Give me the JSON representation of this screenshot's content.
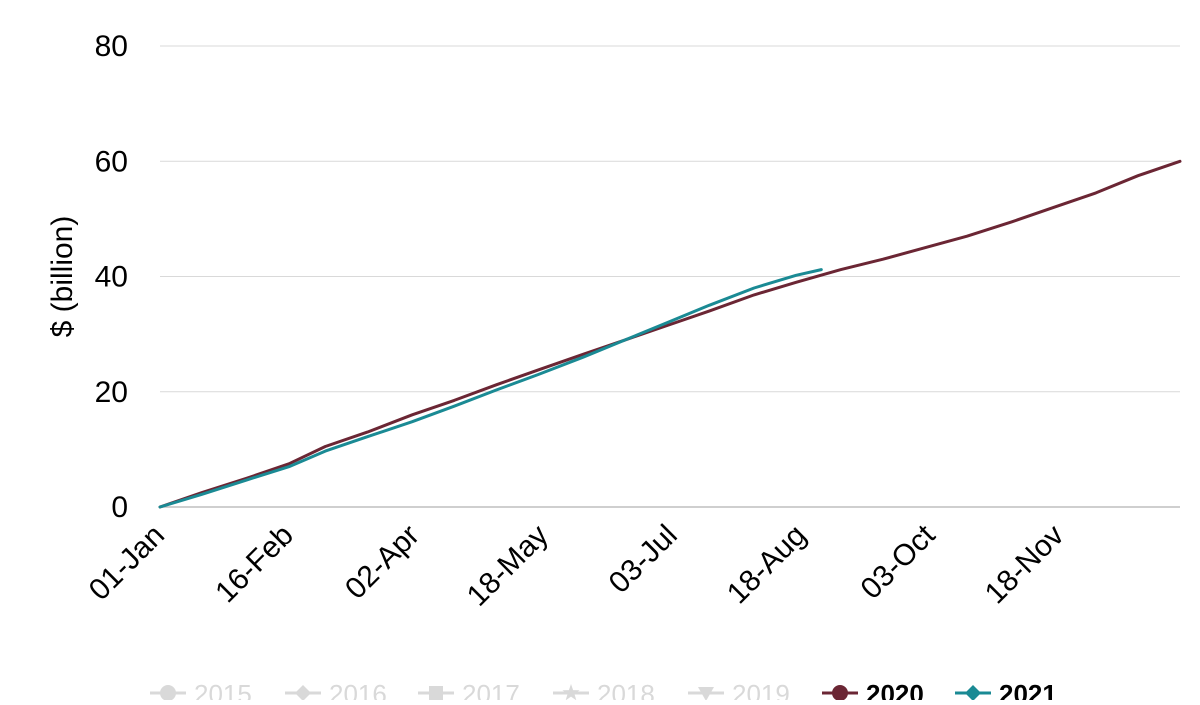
{
  "chart_data": {
    "type": "line",
    "title": "",
    "xlabel": "",
    "ylabel": "$ (billion)",
    "x_ticks": [
      "01-Jan",
      "16-Feb",
      "02-Apr",
      "18-May",
      "03-Jul",
      "18-Aug",
      "03-Oct",
      "18-Nov"
    ],
    "xlim": [
      "01-Jan",
      "31-Dec"
    ],
    "ylim": [
      0,
      80
    ],
    "y_ticks": [
      0,
      20,
      40,
      60,
      80
    ],
    "grid": "horizontal",
    "legend_position": "bottom",
    "series": [
      {
        "name": "2015",
        "color": "#d9d9d9",
        "marker": "circle",
        "bold": false,
        "x": [],
        "y": []
      },
      {
        "name": "2016",
        "color": "#d9d9d9",
        "marker": "diamond",
        "bold": false,
        "x": [],
        "y": []
      },
      {
        "name": "2017",
        "color": "#d9d9d9",
        "marker": "square",
        "bold": false,
        "x": [],
        "y": []
      },
      {
        "name": "2018",
        "color": "#d9d9d9",
        "marker": "star",
        "bold": false,
        "x": [],
        "y": []
      },
      {
        "name": "2019",
        "color": "#d9d9d9",
        "marker": "triangle-down",
        "bold": false,
        "x": [],
        "y": []
      },
      {
        "name": "2020",
        "color": "#6b2634",
        "marker": "circle",
        "bold": true,
        "x": [
          "01-Jan",
          "16-Jan",
          "01-Feb",
          "16-Feb",
          "01-Mar",
          "16-Mar",
          "01-Apr",
          "16-Apr",
          "01-May",
          "16-May",
          "01-Jun",
          "16-Jun",
          "01-Jul",
          "16-Jul",
          "01-Aug",
          "16-Aug",
          "01-Sep",
          "16-Sep",
          "01-Oct",
          "16-Oct",
          "01-Nov",
          "16-Nov",
          "01-Dec",
          "16-Dec",
          "31-Dec"
        ],
        "y": [
          0,
          2.5,
          5,
          7.5,
          10.5,
          13,
          16,
          18.5,
          21.2,
          23.8,
          26.5,
          29,
          31.5,
          34,
          36.8,
          39,
          41.2,
          43,
          45,
          47,
          49.5,
          52,
          54.5,
          57.5,
          60
        ]
      },
      {
        "name": "2021",
        "color": "#1a8a94",
        "marker": "diamond",
        "bold": true,
        "x": [
          "01-Jan",
          "16-Jan",
          "01-Feb",
          "16-Feb",
          "01-Mar",
          "16-Mar",
          "01-Apr",
          "16-Apr",
          "01-May",
          "16-May",
          "01-Jun",
          "16-Jun",
          "01-Jul",
          "16-Jul",
          "01-Aug",
          "16-Aug",
          "25-Aug"
        ],
        "y": [
          0,
          2.2,
          4.7,
          7,
          9.7,
          12.2,
          14.8,
          17.5,
          20.3,
          23,
          26,
          29,
          32,
          35,
          38,
          40.2,
          41.2
        ]
      }
    ]
  }
}
